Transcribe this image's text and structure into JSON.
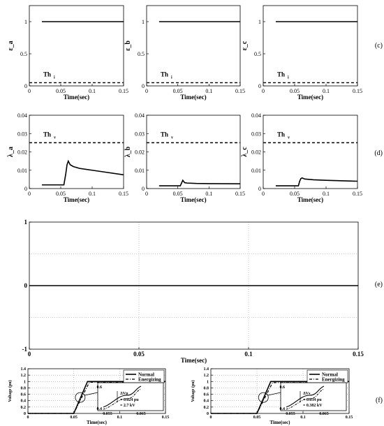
{
  "chart_data": [
    {
      "id": "ea",
      "type": "line",
      "panel": "(c)",
      "ylabel": "ε_a",
      "xlabel": "Time(sec)",
      "xlim": [
        0,
        0.15
      ],
      "ylim": [
        0,
        1.25
      ],
      "xticks": [
        "0",
        "0.05",
        "0.1",
        "0.15"
      ],
      "yticks": [
        "0",
        "0.5",
        "1"
      ],
      "threshold": {
        "label": "Th",
        "sub": "i",
        "value": 0.05
      },
      "series": [
        {
          "x": [
            0.02,
            0.15
          ],
          "y": [
            1,
            1
          ]
        }
      ]
    },
    {
      "id": "eb",
      "type": "line",
      "ylabel": "ε_b",
      "xlabel": "Time(sec)",
      "xlim": [
        0,
        0.15
      ],
      "ylim": [
        0,
        1.25
      ],
      "xticks": [
        "0",
        "0.05",
        "0.1",
        "0.15"
      ],
      "yticks": [
        "0",
        "0.5",
        "1"
      ],
      "threshold": {
        "label": "Th",
        "sub": "i",
        "value": 0.05
      },
      "series": [
        {
          "x": [
            0.02,
            0.15
          ],
          "y": [
            1,
            1
          ]
        }
      ]
    },
    {
      "id": "ec",
      "type": "line",
      "ylabel": "ε_c",
      "xlabel": "Time(sec)",
      "xlim": [
        0,
        0.15
      ],
      "ylim": [
        0,
        1.25
      ],
      "xticks": [
        "0",
        "0.05",
        "0.1",
        "0.15"
      ],
      "yticks": [
        "0",
        "0.5",
        "1"
      ],
      "threshold": {
        "label": "Th",
        "sub": "i",
        "value": 0.05
      },
      "series": [
        {
          "x": [
            0.02,
            0.15
          ],
          "y": [
            1,
            1
          ]
        }
      ]
    },
    {
      "id": "la",
      "type": "line",
      "panel": "(d)",
      "ylabel": "λ_a",
      "xlabel": "Time(sec)",
      "xlim": [
        0,
        0.15
      ],
      "ylim": [
        0,
        0.04
      ],
      "xticks": [
        "0",
        "0.05",
        "0.1",
        "0.15"
      ],
      "yticks": [
        "0",
        "0.01",
        "0.02",
        "0.03",
        "0.04"
      ],
      "threshold": {
        "label": "Th",
        "sub": "v",
        "value": 0.025
      },
      "series": [
        {
          "x": [
            0.02,
            0.055,
            0.058,
            0.06,
            0.062,
            0.065,
            0.07,
            0.08,
            0.1,
            0.12,
            0.15
          ],
          "y": [
            0.002,
            0.002,
            0.008,
            0.013,
            0.015,
            0.013,
            0.012,
            0.011,
            0.01,
            0.009,
            0.0075
          ]
        }
      ]
    },
    {
      "id": "lb",
      "type": "line",
      "ylabel": "λ_b",
      "xlabel": "Time(sec)",
      "xlim": [
        0,
        0.15
      ],
      "ylim": [
        0,
        0.04
      ],
      "xticks": [
        "0",
        "0.05",
        "0.1",
        "0.15"
      ],
      "yticks": [
        "0",
        "0.01",
        "0.02",
        "0.03",
        "0.04"
      ],
      "threshold": {
        "label": "Th",
        "sub": "v",
        "value": 0.025
      },
      "series": [
        {
          "x": [
            0.02,
            0.054,
            0.056,
            0.058,
            0.061,
            0.065,
            0.08,
            0.1,
            0.15
          ],
          "y": [
            0.0015,
            0.0015,
            0.003,
            0.0045,
            0.0032,
            0.003,
            0.0028,
            0.0027,
            0.0026
          ]
        }
      ]
    },
    {
      "id": "lc",
      "type": "line",
      "ylabel": "λ_c",
      "xlabel": "Time(sec)",
      "xlim": [
        0,
        0.15
      ],
      "ylim": [
        0,
        0.04
      ],
      "xticks": [
        "0",
        "0.05",
        "0.1",
        "0.15"
      ],
      "yticks": [
        "0",
        "0.01",
        "0.02",
        "0.03",
        "0.04"
      ],
      "threshold": {
        "label": "Th",
        "sub": "v",
        "value": 0.025
      },
      "series": [
        {
          "x": [
            0.02,
            0.056,
            0.058,
            0.06,
            0.062,
            0.066,
            0.08,
            0.1,
            0.15
          ],
          "y": [
            0.0015,
            0.0015,
            0.004,
            0.0055,
            0.0058,
            0.0052,
            0.0048,
            0.0045,
            0.004
          ]
        }
      ]
    },
    {
      "id": "e",
      "type": "line",
      "panel": "(e)",
      "xlabel": "Time(sec)",
      "ylabel": "",
      "xlim": [
        0,
        0.15
      ],
      "ylim": [
        -1,
        1
      ],
      "xticks": [
        "0",
        "0.05",
        "0.1",
        "0.15"
      ],
      "yticks": [
        "-1",
        "0",
        "1"
      ],
      "grid": true,
      "series": [
        {
          "x": [
            0,
            0.15
          ],
          "y": [
            0,
            0
          ]
        }
      ]
    },
    {
      "id": "fp",
      "type": "line",
      "panel": "(f)",
      "ylabel": "Voltage (pu)",
      "xlabel": "Time(sec)",
      "xlim": [
        0,
        0.15
      ],
      "ylim": [
        0,
        1.4
      ],
      "xticks": [
        "0",
        "0.05",
        "0.1",
        "0.15"
      ],
      "yticks": [
        "0",
        "0.2",
        "0.4",
        "0.6",
        "0.8",
        "1",
        "1.2",
        "1.4"
      ],
      "grid": true,
      "legend": [
        "Normal",
        "Energizing"
      ],
      "series": [
        {
          "name": "Normal",
          "x": [
            0,
            0.05,
            0.065,
            0.15
          ],
          "y": [
            0,
            0,
            1.0,
            1.0
          ]
        },
        {
          "name": "Energizing",
          "x": [
            0,
            0.05,
            0.067,
            0.15
          ],
          "y": [
            0,
            0,
            0.975,
            0.975
          ]
        }
      ],
      "inset": {
        "ylim_labels": [
          "0.6",
          "0.4"
        ],
        "xlim_labels": [
          "0.055",
          "0.065"
        ],
        "delta": "ΔVp",
        "line1": "= 0.024 pu",
        "line2": "= 2.7 kV"
      }
    },
    {
      "id": "fs",
      "type": "line",
      "ylabel": "Voltage (pu)",
      "xlabel": "Time(sec)",
      "xlim": [
        0,
        0.15
      ],
      "ylim": [
        0,
        1.4
      ],
      "xticks": [
        "0",
        "0.05",
        "0.1",
        "0.15"
      ],
      "yticks": [
        "0",
        "0.2",
        "0.4",
        "0.6",
        "0.8",
        "1",
        "1.2",
        "1.4"
      ],
      "grid": true,
      "legend": [
        "Normal",
        "Energizing"
      ],
      "series": [
        {
          "name": "Normal",
          "x": [
            0,
            0.05,
            0.065,
            0.15
          ],
          "y": [
            0,
            0,
            1.0,
            1.0
          ]
        },
        {
          "name": "Energizing",
          "x": [
            0,
            0.05,
            0.067,
            0.15
          ],
          "y": [
            0,
            0,
            0.966,
            0.966
          ]
        }
      ],
      "inset": {
        "ylim_labels": [
          "0.6",
          "0.4"
        ],
        "xlim_labels": [
          "0.055",
          "0.065"
        ],
        "delta": "ΔVs",
        "line1": "= 0.034 pu",
        "line2": "= 0.382 kV"
      }
    }
  ]
}
